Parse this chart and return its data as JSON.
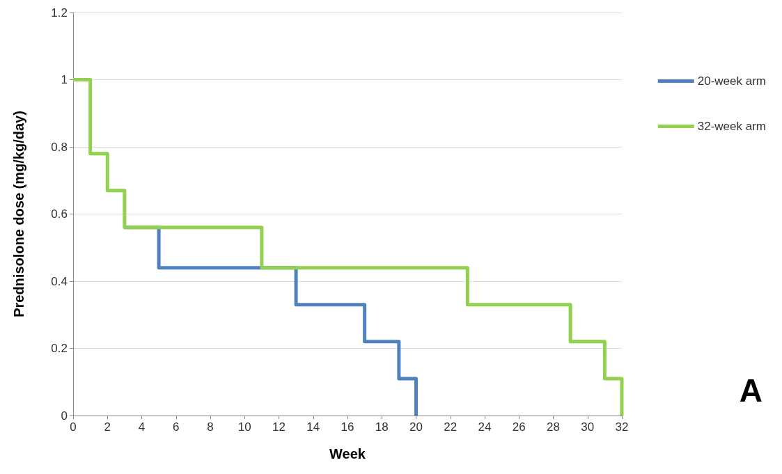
{
  "chart_data": {
    "type": "step",
    "xlabel": "Week",
    "ylabel": "Prednisolone dose (mg/kg/day)",
    "annotations": [
      "A"
    ],
    "series": [
      {
        "name": "20-week arm",
        "color": "#4f81bd",
        "x": [
          3,
          5,
          13,
          17,
          19,
          20
        ],
        "values": [
          0.56,
          0.44,
          0.33,
          0.22,
          0.11,
          0
        ]
      },
      {
        "name": "32-week arm",
        "color": "#92d050",
        "x": [
          0,
          1,
          2,
          3,
          11,
          23,
          29,
          31,
          32
        ],
        "values": [
          1,
          0.78,
          0.67,
          0.56,
          0.44,
          0.33,
          0.22,
          0.11,
          0
        ]
      }
    ],
    "xlim": [
      0,
      32
    ],
    "xticks": [
      0,
      2,
      4,
      6,
      8,
      10,
      12,
      14,
      16,
      18,
      20,
      22,
      24,
      26,
      28,
      30,
      32
    ],
    "ylim": [
      0,
      1.2
    ],
    "yticks": [
      0,
      0.2,
      0.4,
      0.6,
      0.8,
      1,
      1.2
    ],
    "grid": "y",
    "legend": "right",
    "marker": "none",
    "line_style": "solid"
  }
}
